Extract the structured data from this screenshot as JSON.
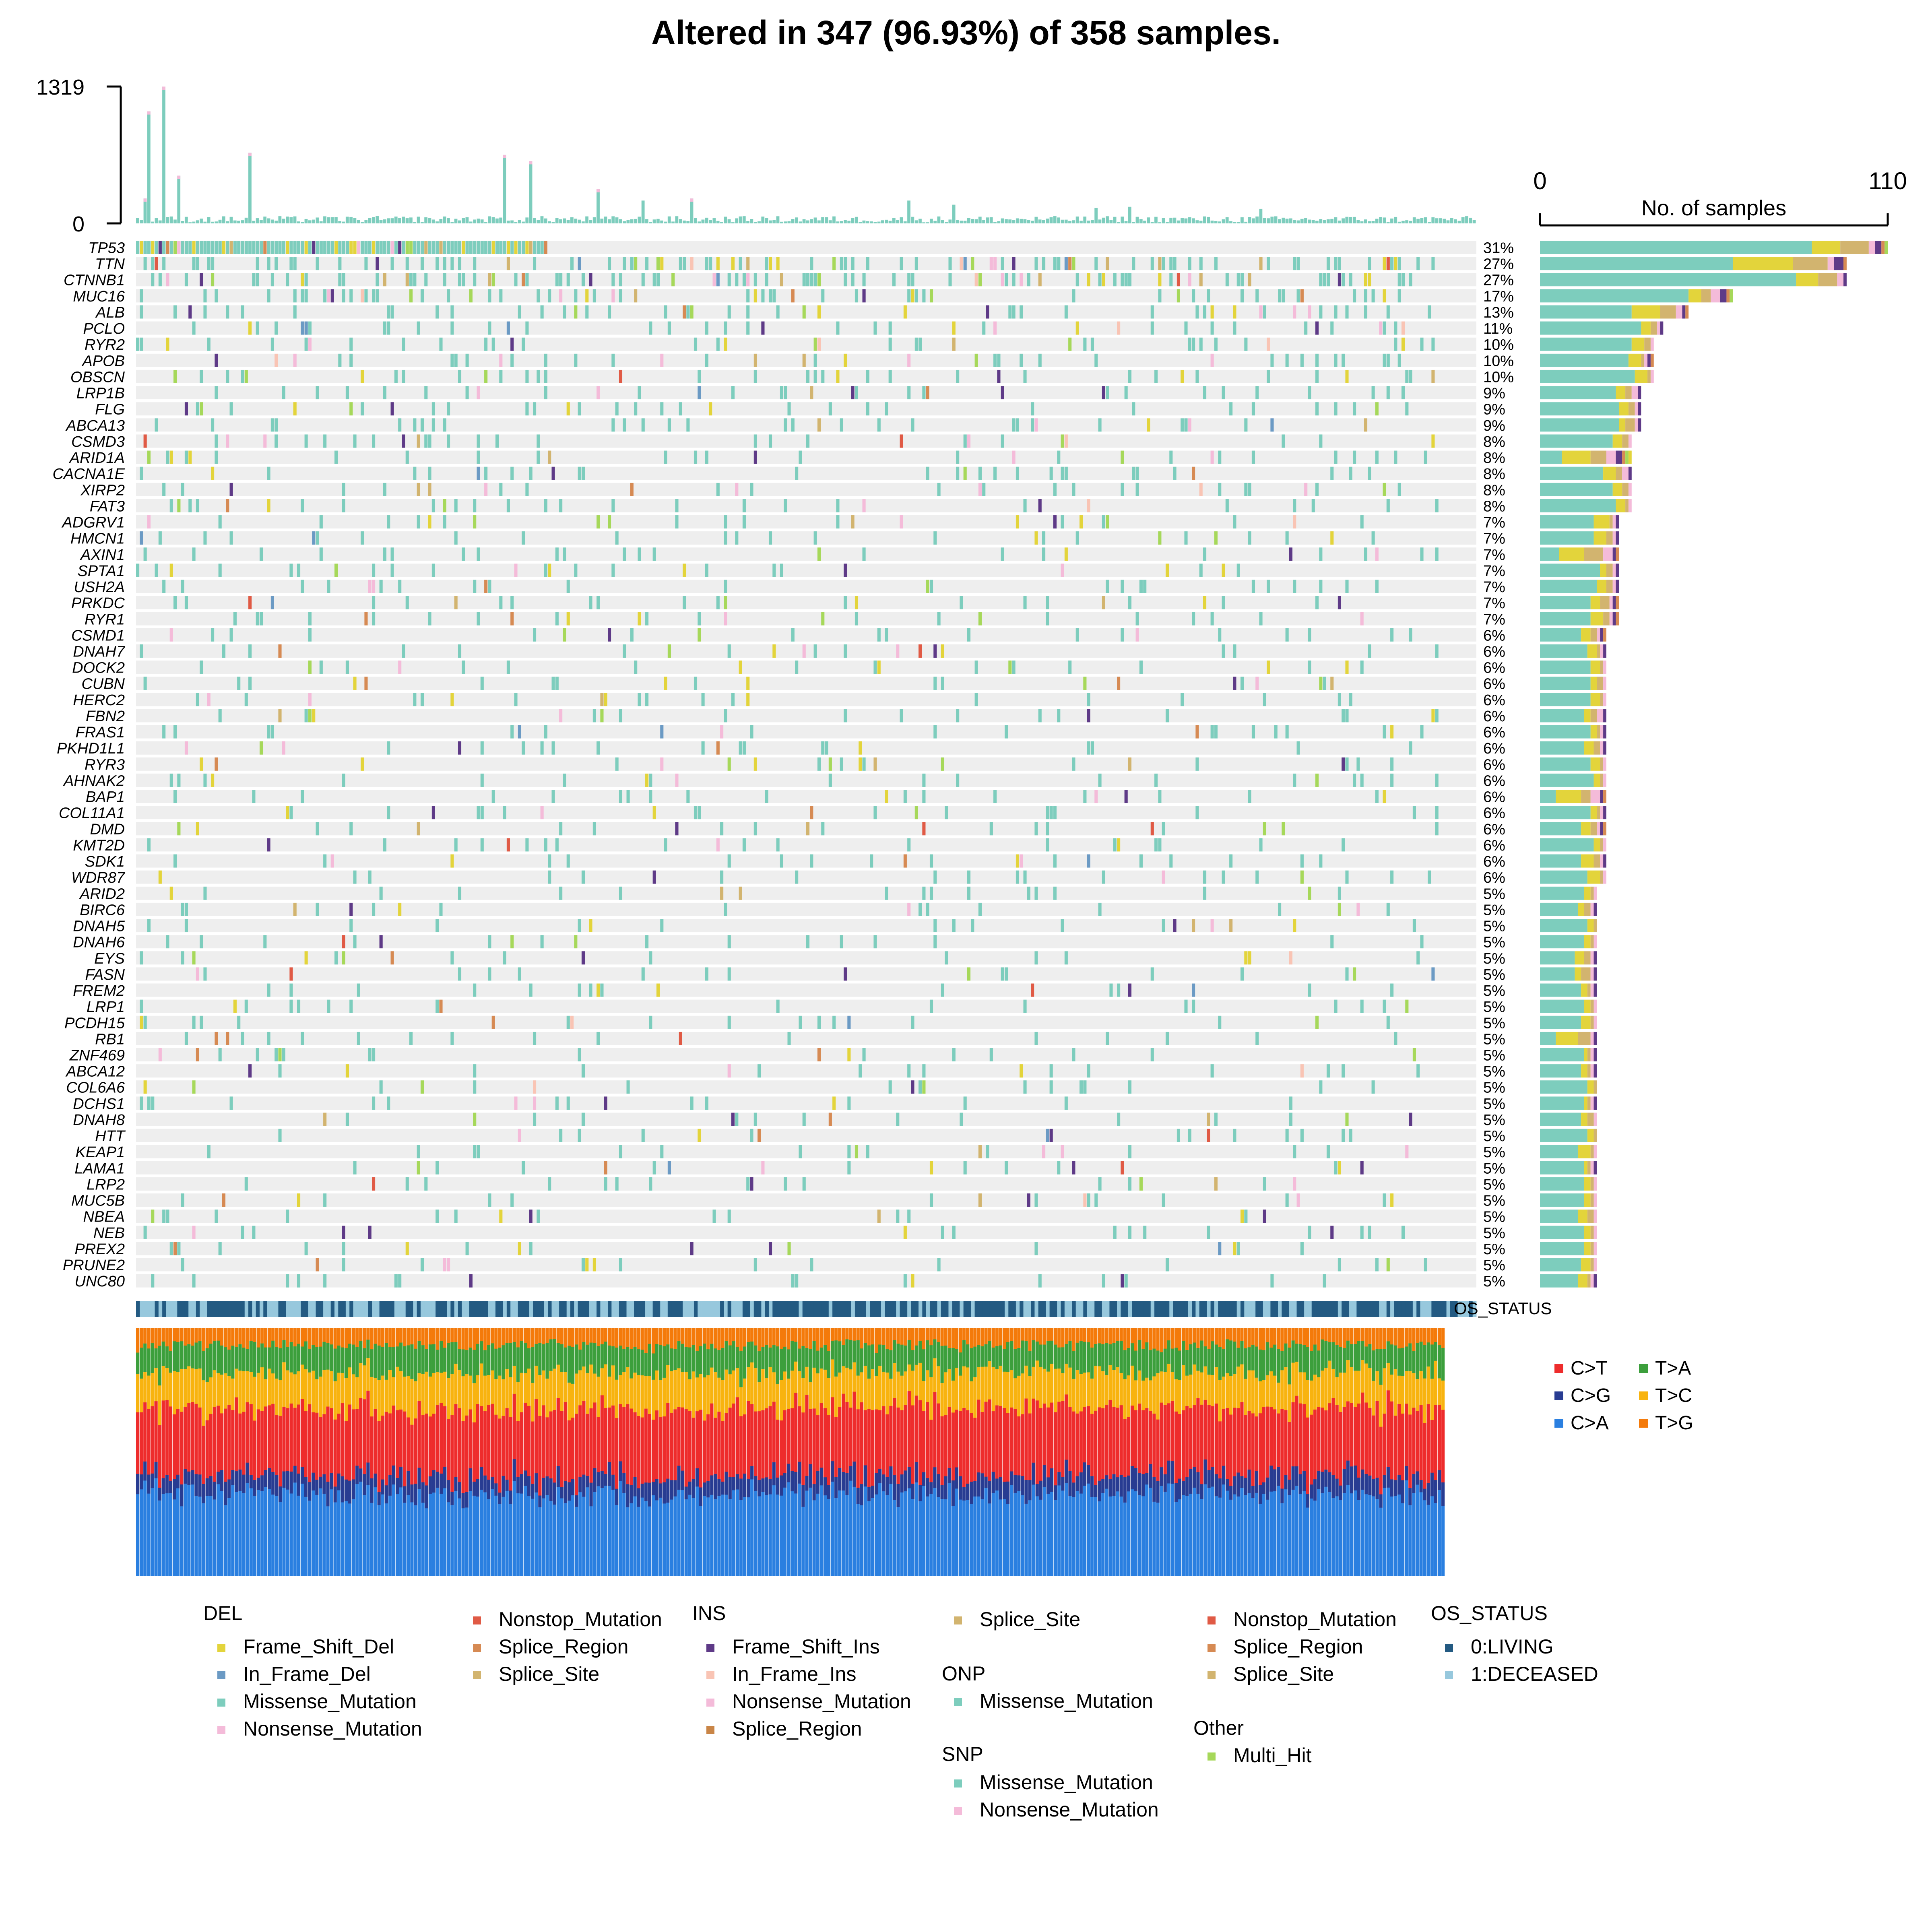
{
  "chart_data": {
    "type": "heatmap",
    "title": "Altered in 347 (96.93%) of 358 samples.",
    "n_samples": 358,
    "altered_samples": 347,
    "tmb_axis": {
      "ylim": [
        0,
        1319
      ],
      "ticks": [
        "0",
        "1319"
      ]
    },
    "samples_axis": {
      "title": "No. of samples",
      "xlim": [
        0,
        110
      ],
      "ticks": [
        "0",
        "110"
      ]
    },
    "genes": [
      "TP53",
      "TTN",
      "CTNNB1",
      "MUC16",
      "ALB",
      "PCLO",
      "RYR2",
      "APOB",
      "OBSCN",
      "LRP1B",
      "FLG",
      "ABCA13",
      "CSMD3",
      "ARID1A",
      "CACNA1E",
      "XIRP2",
      "FAT3",
      "ADGRV1",
      "HMCN1",
      "AXIN1",
      "SPTA1",
      "USH2A",
      "PRKDC",
      "RYR1",
      "CSMD1",
      "DNAH7",
      "DOCK2",
      "CUBN",
      "HERC2",
      "FBN2",
      "FRAS1",
      "PKHD1L1",
      "RYR3",
      "AHNAK2",
      "BAP1",
      "COL11A1",
      "DMD",
      "KMT2D",
      "SDK1",
      "WDR87",
      "ARID2",
      "BIRC6",
      "DNAH5",
      "DNAH6",
      "EYS",
      "FASN",
      "FREM2",
      "LRP1",
      "PCDH15",
      "RB1",
      "ZNF469",
      "ABCA12",
      "COL6A6",
      "DCHS1",
      "DNAH8",
      "HTT",
      "KEAP1",
      "LAMA1",
      "LRP2",
      "MUC5B",
      "NBEA",
      "NEB",
      "PREX2",
      "PRUNE2",
      "UNC80"
    ],
    "percent_labels": [
      "31%",
      "27%",
      "27%",
      "17%",
      "13%",
      "11%",
      "10%",
      "10%",
      "10%",
      "9%",
      "9%",
      "9%",
      "8%",
      "8%",
      "8%",
      "8%",
      "8%",
      "7%",
      "7%",
      "7%",
      "7%",
      "7%",
      "7%",
      "7%",
      "6%",
      "6%",
      "6%",
      "6%",
      "6%",
      "6%",
      "6%",
      "6%",
      "6%",
      "6%",
      "6%",
      "6%",
      "6%",
      "6%",
      "6%",
      "6%",
      "5%",
      "5%",
      "5%",
      "5%",
      "5%",
      "5%",
      "5%",
      "5%",
      "5%",
      "5%",
      "5%",
      "5%",
      "5%",
      "5%",
      "5%",
      "5%",
      "5%",
      "5%",
      "5%",
      "5%",
      "5%",
      "5%",
      "5%",
      "5%",
      "5%"
    ],
    "gene_counts": [
      110,
      97,
      97,
      61,
      47,
      39,
      36,
      36,
      36,
      32,
      32,
      32,
      29,
      29,
      29,
      29,
      29,
      25,
      25,
      25,
      25,
      25,
      25,
      25,
      21,
      21,
      21,
      21,
      21,
      21,
      21,
      21,
      21,
      21,
      21,
      21,
      21,
      21,
      21,
      21,
      18,
      18,
      18,
      18,
      18,
      18,
      18,
      18,
      18,
      18,
      18,
      18,
      18,
      18,
      18,
      18,
      18,
      18,
      18,
      18,
      18,
      18,
      18,
      18,
      18
    ],
    "annotation_track": "OS_STATUS",
    "os_status_levels": [
      "0:LIVING",
      "1:DECEASED"
    ],
    "substitution_classes": [
      "C>T",
      "C>G",
      "C>A",
      "T>A",
      "T>C",
      "T>G"
    ],
    "legend_groups": [
      {
        "title": "DEL",
        "items": [
          "Frame_Shift_Del",
          "In_Frame_Del",
          "Missense_Mutation",
          "Nonsense_Mutation",
          "Nonstop_Mutation",
          "Splice_Region",
          "Splice_Site"
        ]
      },
      {
        "title": "INS",
        "items": [
          "Frame_Shift_Ins",
          "In_Frame_Ins",
          "Nonsense_Mutation",
          "Splice_Region"
        ]
      },
      {
        "title": "",
        "items": [
          "Splice_Site"
        ]
      },
      {
        "title": "ONP",
        "items": [
          "Missense_Mutation"
        ]
      },
      {
        "title": "SNP",
        "items": [
          "Missense_Mutation",
          "Nonsense_Mutation"
        ]
      },
      {
        "title": "",
        "items": [
          "Nonstop_Mutation",
          "Splice_Region",
          "Splice_Site"
        ]
      },
      {
        "title": "Other",
        "items": [
          "Multi_Hit"
        ]
      },
      {
        "title": "OS_STATUS",
        "items": [
          "0:LIVING",
          "1:DECEASED"
        ]
      }
    ],
    "colors": {
      "Missense_Mutation": "#7DCDBD",
      "Frame_Shift_Del": "#E3D43B",
      "In_Frame_Del": "#6B9AC4",
      "Nonsense_Mutation": "#F4BBD9",
      "Nonstop_Mutation": "#E05A45",
      "Splice_Region": "#D68A53",
      "Splice_Site": "#D2B46F",
      "Frame_Shift_Ins": "#5E3A87",
      "In_Frame_Ins": "#F9C4B4",
      "Ins_Splice_Region": "#C98547",
      "Multi_Hit": "#A6D85A",
      "LIVING": "#235A82",
      "DECEASED": "#97C8DD",
      "C>T": "#EE2C2C",
      "C>G": "#283C92",
      "C>A": "#2A7FE0",
      "T>A": "#3C9F3C",
      "T>C": "#F8B30F",
      "T>G": "#F47A0A",
      "background": "#EEEEEE"
    }
  }
}
